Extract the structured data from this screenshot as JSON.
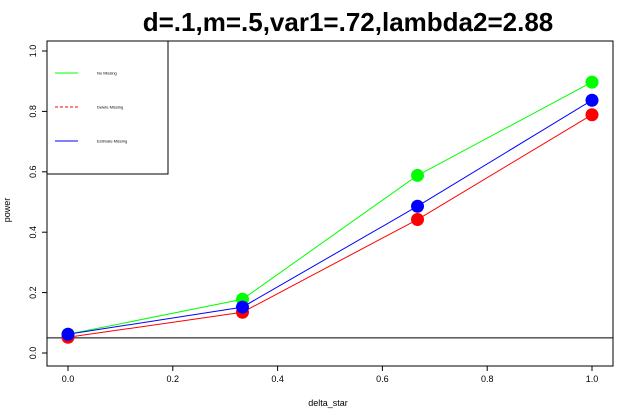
{
  "chart_data": {
    "type": "line",
    "title": "d=.1,m=.5,var1=.72,lambda2=2.88",
    "xlabel": "delta_star",
    "ylabel": "power",
    "xlim": [
      0,
      1
    ],
    "ylim": [
      0,
      1
    ],
    "x_ticks": [
      "0.0",
      "0.2",
      "0.4",
      "0.6",
      "0.8",
      "1.0"
    ],
    "y_ticks": [
      "0.0",
      "0.2",
      "0.4",
      "0.6",
      "0.8",
      "1.0"
    ],
    "x": [
      0.0,
      0.333,
      0.667,
      1.0
    ],
    "reference_line_y": 0.05,
    "legend_position": "top-left",
    "series": [
      {
        "name": "No Missing",
        "color": "#00ff00",
        "line_style": "solid",
        "values": [
          0.062,
          0.178,
          0.588,
          0.897
        ]
      },
      {
        "name": "Delete Missing",
        "color": "#ff0000",
        "line_style": "dashed",
        "values": [
          0.052,
          0.135,
          0.442,
          0.789
        ]
      },
      {
        "name": "Estimate Missing",
        "color": "#0000ff",
        "line_style": "solid",
        "values": [
          0.062,
          0.152,
          0.486,
          0.837
        ]
      }
    ]
  }
}
